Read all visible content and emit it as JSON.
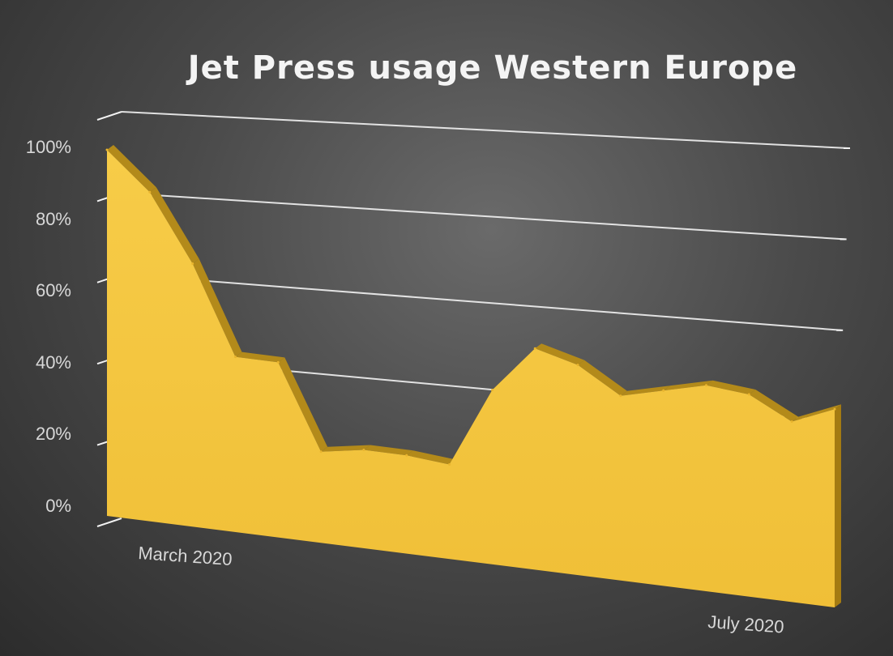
{
  "chart_data": {
    "type": "area",
    "title": "Jet Press usage Western Europe",
    "xlabel": "",
    "ylabel": "",
    "ylim": [
      0,
      100
    ],
    "y_ticks": [
      "0%",
      "20%",
      "40%",
      "60%",
      "80%",
      "100%"
    ],
    "x_start_label": "March 2020",
    "x_end_label": "July 2020",
    "grid": true,
    "values": [
      100,
      90,
      72,
      48,
      48,
      25,
      27,
      27,
      26,
      48,
      61,
      58,
      51,
      54,
      57,
      56,
      50,
      55
    ],
    "fill_color": "#f4c541",
    "edge_color": "#b38a1a",
    "grid_color": "#f2f2f2"
  }
}
